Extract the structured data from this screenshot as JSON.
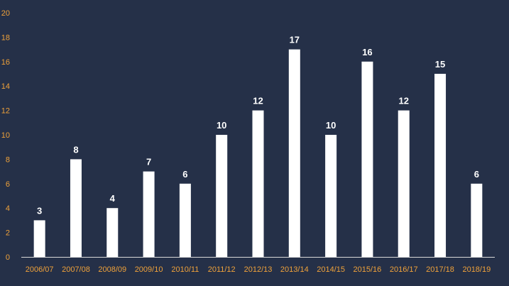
{
  "colors": {
    "background": "#253048",
    "bar": "#ffffff",
    "tick_label": "#f0a23a",
    "data_label": "#ffffff",
    "axis": "#d9d9d9"
  },
  "chart_data": {
    "type": "bar",
    "categories": [
      "2006/07",
      "2007/08",
      "2008/09",
      "2009/10",
      "2010/11",
      "2011/12",
      "2012/13",
      "2013/14",
      "2014/15",
      "2015/16",
      "2016/17",
      "2017/18",
      "2018/19"
    ],
    "values": [
      3,
      8,
      4,
      7,
      6,
      10,
      12,
      17,
      10,
      16,
      12,
      15,
      6
    ],
    "data_labels": [
      "3",
      "8",
      "4",
      "7",
      "6",
      "10",
      "12",
      "17",
      "10",
      "16",
      "12",
      "15",
      "6"
    ],
    "ylim": [
      0,
      20
    ],
    "yticks": [
      "0",
      "2",
      "4",
      "6",
      "8",
      "10",
      "12",
      "14",
      "16",
      "18",
      "20"
    ],
    "grid": false,
    "legend": false
  }
}
